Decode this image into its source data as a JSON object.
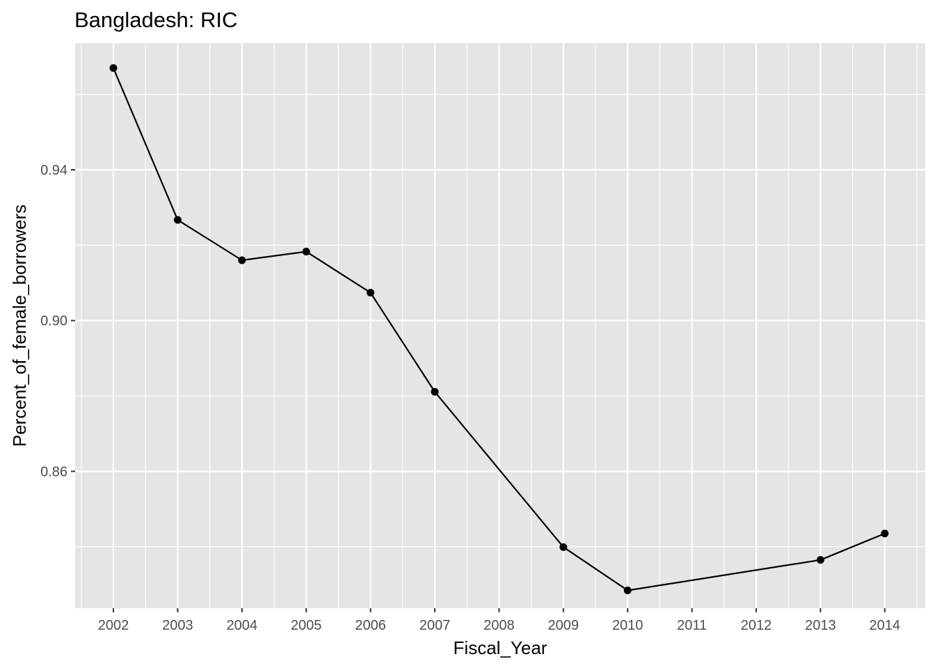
{
  "chart_data": {
    "type": "line",
    "title": "Bangladesh:  RIC",
    "xlabel": "Fiscal_Year",
    "ylabel": "Percent_of_female_borrowers",
    "categories": [
      "2002",
      "2003",
      "2004",
      "2005",
      "2006",
      "2007",
      "2008",
      "2009",
      "2010",
      "2011",
      "2012",
      "2013",
      "2014"
    ],
    "series": [
      {
        "points": [
          {
            "x": "2002",
            "y": 0.967
          },
          {
            "x": "2003",
            "y": 0.9267
          },
          {
            "x": "2004",
            "y": 0.916
          },
          {
            "x": "2005",
            "y": 0.9183
          },
          {
            "x": "2006",
            "y": 0.9074
          },
          {
            "x": "2007",
            "y": 0.8811
          },
          {
            "x": "2009",
            "y": 0.8399
          },
          {
            "x": "2010",
            "y": 0.8284
          },
          {
            "x": "2013",
            "y": 0.8365
          },
          {
            "x": "2014",
            "y": 0.8435
          }
        ]
      }
    ],
    "ylim": [
      0.8237,
      0.9736
    ],
    "yticks": [
      0.86,
      0.9,
      0.94
    ],
    "ytick_labels": [
      "0.86",
      "0.90",
      "0.94"
    ],
    "grid": true,
    "colors": {
      "panel": "#e5e5e5",
      "grid": "#ffffff",
      "line": "#000000",
      "point": "#000000"
    }
  }
}
